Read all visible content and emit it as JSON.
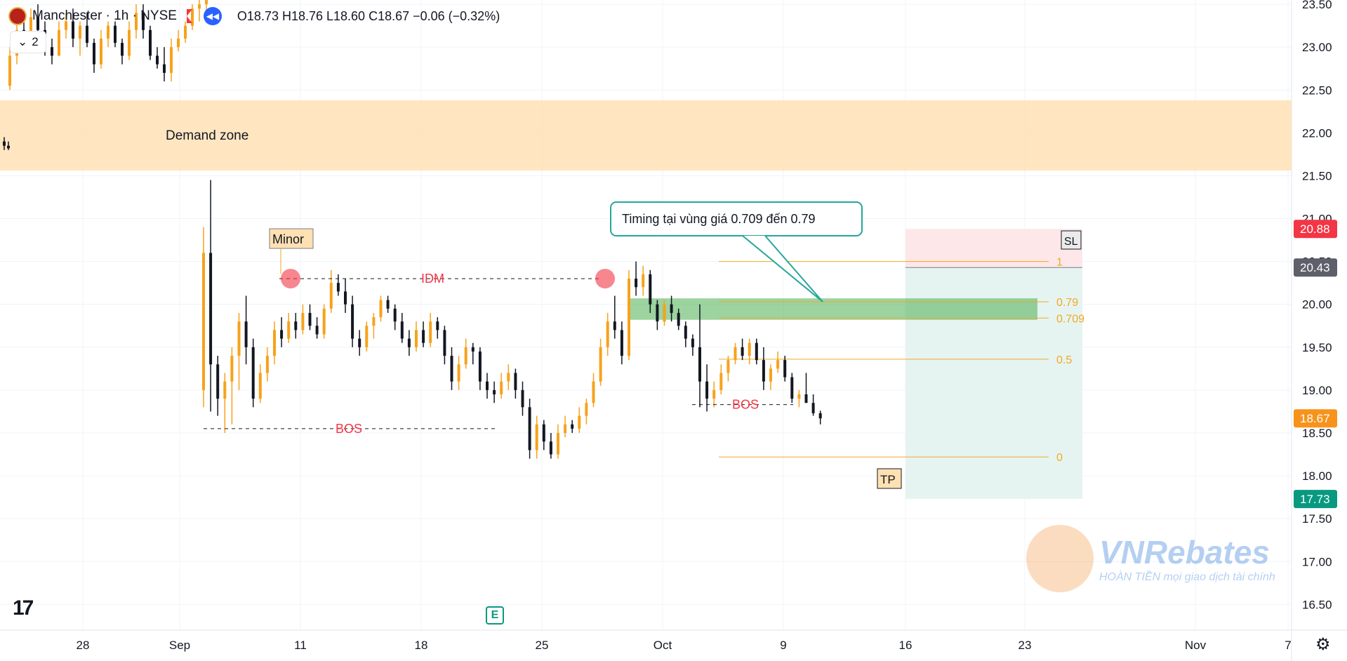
{
  "header": {
    "title": "Manchester · 1h · NYSE",
    "ohlc": "O18.73 H18.76 L18.60 C18.67 −0.06 (−0.32%)",
    "counter": "2"
  },
  "icons": {
    "chart_logo": "tradingview-logo-icon",
    "earnings": "earnings-icon",
    "settings": "gear-icon",
    "flag": "flag-icon",
    "replay": "rewind-icon",
    "counter": "chevron-down-icon"
  },
  "labels": {
    "earnings": "E",
    "tv_logo": "17"
  },
  "watermark": {
    "name": "VNRebates",
    "tagline": "HOÀN TIỀN mọi giao dịch tài chính"
  },
  "colors": {
    "up": "#f7a21b",
    "down": "#131722",
    "demand_zone": "#ffe0b2",
    "entry_zone": "#4caf50",
    "fib": "#f0a922",
    "sl_zone": "#fde7e9",
    "tp_zone": "#e6f4f1",
    "sl_price": "#f23645",
    "tp_price": "#089981",
    "last_price": "#f7931a",
    "level_price": "#5d606b",
    "annotation_red": "#f23645"
  },
  "chart_data": {
    "type": "candlestick",
    "timeframe": "1h",
    "x_ticks": [
      "28",
      "Sep",
      "11",
      "18",
      "25",
      "Oct",
      "9",
      "16",
      "23",
      "Nov",
      "7"
    ],
    "y_ticks": [
      "23.50",
      "23.00",
      "22.50",
      "22.00",
      "21.50",
      "21.00",
      "20.50",
      "20.00",
      "19.50",
      "19.00",
      "18.50",
      "18.00",
      "17.50",
      "17.00",
      "16.50"
    ],
    "ylim": [
      16.2,
      23.55
    ],
    "price_badges": [
      {
        "label": "20.88",
        "value": 20.88,
        "kind": "sl"
      },
      {
        "label": "20.43",
        "value": 20.43,
        "kind": "level"
      },
      {
        "label": "18.67",
        "value": 18.67,
        "kind": "last"
      },
      {
        "label": "17.73",
        "value": 17.73,
        "kind": "tp"
      }
    ],
    "demand_zone": {
      "label": "Demand zone",
      "from": 21.56,
      "to": 22.38
    },
    "fib_levels": [
      {
        "label": "1",
        "value": 20.5
      },
      {
        "label": "0.79",
        "value": 20.03
      },
      {
        "label": "0.709",
        "value": 19.84
      },
      {
        "label": "0.5",
        "value": 19.36
      },
      {
        "label": "0",
        "value": 18.22
      }
    ],
    "entry_zone": {
      "from": 19.82,
      "to": 20.07
    },
    "position": {
      "entry": 20.43,
      "stop": 20.88,
      "target": 17.73,
      "sl_label": "SL",
      "tp_label": "TP"
    },
    "annotations": {
      "minor": "Minor",
      "idm": "IDM",
      "bos1": "BOS",
      "bos2": "BOS",
      "callout": "Timing tại vùng giá 0.709 đến 0.79"
    },
    "idm_level": 20.3,
    "bos_level_1": 18.55,
    "bos_level_2": 18.83,
    "candles": [
      [
        22.55,
        23.0,
        22.5,
        22.9
      ],
      [
        22.9,
        23.3,
        22.8,
        23.2
      ],
      [
        23.2,
        23.4,
        23.0,
        23.1
      ],
      [
        23.1,
        23.45,
        23.0,
        23.35
      ],
      [
        23.35,
        23.5,
        23.1,
        23.2
      ],
      [
        23.2,
        23.3,
        22.9,
        23.0
      ],
      [
        23.0,
        23.1,
        22.8,
        22.9
      ],
      [
        22.9,
        23.3,
        22.9,
        23.2
      ],
      [
        23.2,
        23.4,
        23.1,
        23.3
      ],
      [
        23.3,
        23.45,
        23.0,
        23.1
      ],
      [
        23.1,
        23.3,
        22.9,
        23.25
      ],
      [
        23.25,
        23.4,
        23.0,
        23.05
      ],
      [
        23.05,
        23.1,
        22.7,
        22.8
      ],
      [
        22.8,
        23.2,
        22.75,
        23.1
      ],
      [
        23.1,
        23.3,
        23.0,
        23.25
      ],
      [
        23.25,
        23.3,
        23.0,
        23.05
      ],
      [
        23.05,
        23.1,
        22.8,
        22.9
      ],
      [
        22.9,
        23.3,
        22.85,
        23.2
      ],
      [
        23.2,
        23.5,
        23.1,
        23.4
      ],
      [
        23.4,
        23.5,
        23.1,
        23.2
      ],
      [
        23.2,
        23.25,
        22.85,
        22.9
      ],
      [
        22.9,
        23.0,
        22.75,
        22.8
      ],
      [
        22.8,
        23.0,
        22.6,
        22.7
      ],
      [
        22.7,
        23.1,
        22.6,
        23.0
      ],
      [
        23.0,
        23.2,
        22.95,
        23.1
      ],
      [
        23.1,
        23.3,
        23.05,
        23.25
      ],
      [
        23.25,
        23.5,
        23.2,
        23.45
      ],
      [
        23.45,
        23.6,
        23.3,
        23.5
      ],
      [
        23.5,
        23.6,
        23.4,
        23.55
      ]
    ],
    "candles2": [
      [
        21.9,
        21.95,
        21.8,
        21.85
      ],
      [
        21.85,
        21.9,
        21.8,
        21.82
      ]
    ],
    "candles3": [
      [
        19.0,
        20.9,
        18.8,
        20.6
      ],
      [
        20.6,
        21.45,
        18.75,
        19.3
      ],
      [
        19.3,
        19.4,
        18.7,
        18.9
      ],
      [
        18.9,
        19.2,
        18.5,
        19.1
      ],
      [
        19.1,
        19.5,
        18.6,
        19.4
      ],
      [
        19.4,
        19.9,
        19.0,
        19.8
      ],
      [
        19.8,
        20.1,
        19.3,
        19.5
      ],
      [
        19.5,
        19.6,
        18.8,
        18.9
      ],
      [
        18.9,
        19.3,
        18.85,
        19.2
      ],
      [
        19.2,
        19.5,
        19.1,
        19.4
      ],
      [
        19.4,
        19.8,
        19.3,
        19.7
      ],
      [
        19.7,
        19.85,
        19.5,
        19.6
      ],
      [
        19.6,
        19.9,
        19.55,
        19.8
      ],
      [
        19.8,
        19.9,
        19.6,
        19.7
      ],
      [
        19.7,
        20.0,
        19.65,
        19.9
      ],
      [
        19.9,
        20.0,
        19.7,
        19.75
      ],
      [
        19.75,
        19.85,
        19.6,
        19.65
      ],
      [
        19.65,
        20.0,
        19.6,
        19.95
      ],
      [
        19.95,
        20.4,
        19.9,
        20.25
      ],
      [
        20.25,
        20.35,
        20.1,
        20.15
      ],
      [
        20.15,
        20.3,
        19.9,
        20.0
      ],
      [
        20.0,
        20.1,
        19.5,
        19.6
      ],
      [
        19.6,
        19.7,
        19.4,
        19.5
      ],
      [
        19.5,
        19.8,
        19.45,
        19.75
      ],
      [
        19.75,
        19.9,
        19.6,
        19.85
      ],
      [
        19.85,
        20.1,
        19.8,
        20.05
      ],
      [
        20.05,
        20.1,
        19.9,
        19.95
      ],
      [
        19.95,
        20.0,
        19.7,
        19.8
      ],
      [
        19.8,
        19.9,
        19.55,
        19.6
      ],
      [
        19.6,
        19.7,
        19.4,
        19.5
      ],
      [
        19.5,
        19.8,
        19.45,
        19.7
      ],
      [
        19.7,
        19.8,
        19.5,
        19.55
      ],
      [
        19.55,
        19.9,
        19.5,
        19.8
      ],
      [
        19.8,
        19.85,
        19.6,
        19.7
      ],
      [
        19.7,
        19.75,
        19.3,
        19.4
      ],
      [
        19.4,
        19.5,
        19.0,
        19.1
      ],
      [
        19.1,
        19.4,
        19.0,
        19.3
      ],
      [
        19.3,
        19.6,
        19.25,
        19.5
      ],
      [
        19.5,
        19.55,
        19.3,
        19.45
      ],
      [
        19.45,
        19.5,
        19.0,
        19.1
      ],
      [
        19.1,
        19.2,
        18.9,
        19.0
      ],
      [
        19.0,
        19.1,
        18.85,
        18.95
      ],
      [
        18.95,
        19.2,
        18.9,
        19.1
      ],
      [
        19.1,
        19.3,
        19.0,
        19.2
      ],
      [
        19.2,
        19.25,
        18.9,
        19.0
      ],
      [
        19.0,
        19.1,
        18.7,
        18.8
      ],
      [
        18.8,
        18.9,
        18.2,
        18.3
      ],
      [
        18.3,
        18.7,
        18.2,
        18.6
      ],
      [
        18.6,
        18.65,
        18.3,
        18.4
      ],
      [
        18.4,
        18.5,
        18.2,
        18.25
      ],
      [
        18.25,
        18.6,
        18.2,
        18.5
      ],
      [
        18.5,
        18.7,
        18.45,
        18.6
      ],
      [
        18.6,
        18.65,
        18.5,
        18.55
      ],
      [
        18.55,
        18.8,
        18.5,
        18.7
      ],
      [
        18.7,
        18.9,
        18.6,
        18.85
      ],
      [
        18.85,
        19.2,
        18.8,
        19.1
      ],
      [
        19.1,
        19.6,
        19.05,
        19.5
      ],
      [
        19.5,
        19.9,
        19.4,
        19.8
      ],
      [
        19.8,
        20.1,
        19.6,
        19.7
      ],
      [
        19.7,
        19.8,
        19.3,
        19.4
      ],
      [
        19.4,
        20.4,
        19.35,
        20.3
      ],
      [
        20.3,
        20.5,
        20.1,
        20.2
      ],
      [
        20.2,
        20.45,
        20.1,
        20.35
      ],
      [
        20.35,
        20.4,
        19.9,
        20.0
      ],
      [
        20.0,
        20.05,
        19.7,
        19.8
      ],
      [
        19.8,
        20.05,
        19.75,
        20.0
      ],
      [
        20.0,
        20.1,
        19.8,
        19.9
      ],
      [
        19.9,
        19.95,
        19.7,
        19.75
      ],
      [
        19.75,
        19.8,
        19.5,
        19.6
      ],
      [
        19.6,
        19.65,
        19.4,
        19.5
      ],
      [
        19.5,
        20.0,
        18.8,
        19.1
      ],
      [
        19.1,
        19.3,
        18.75,
        18.9
      ],
      [
        18.9,
        19.1,
        18.8,
        19.0
      ],
      [
        19.0,
        19.3,
        18.95,
        19.2
      ],
      [
        19.2,
        19.4,
        19.1,
        19.35
      ],
      [
        19.35,
        19.55,
        19.3,
        19.5
      ],
      [
        19.5,
        19.6,
        19.35,
        19.4
      ],
      [
        19.4,
        19.6,
        19.3,
        19.55
      ],
      [
        19.55,
        19.6,
        19.3,
        19.35
      ],
      [
        19.35,
        19.5,
        19.0,
        19.1
      ],
      [
        19.1,
        19.3,
        19.0,
        19.25
      ],
      [
        19.25,
        19.45,
        19.2,
        19.35
      ],
      [
        19.35,
        19.4,
        19.1,
        19.15
      ],
      [
        19.15,
        19.2,
        18.85,
        18.9
      ],
      [
        18.9,
        19.0,
        18.8,
        18.95
      ],
      [
        18.95,
        19.2,
        18.9,
        18.85
      ],
      [
        18.85,
        18.95,
        18.7,
        18.73
      ],
      [
        18.73,
        18.76,
        18.6,
        18.67
      ]
    ]
  }
}
